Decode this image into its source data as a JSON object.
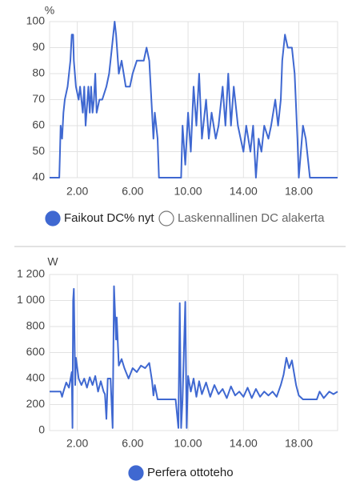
{
  "chart_data": [
    {
      "type": "line",
      "unit_label": "%",
      "xlim": [
        0,
        20.8
      ],
      "ylim": [
        40,
        100
      ],
      "xticks": [
        {
          "value": 2,
          "label": "2.00"
        },
        {
          "value": 6,
          "label": "6.00"
        },
        {
          "value": 10,
          "label": "10.00"
        },
        {
          "value": 14,
          "label": "14.00"
        },
        {
          "value": 18,
          "label": "18.00"
        }
      ],
      "yticks": [
        40,
        50,
        60,
        70,
        80,
        90,
        100
      ],
      "grid": true,
      "x": [
        0,
        0.7,
        0.75,
        0.8,
        0.9,
        1.0,
        1.1,
        1.3,
        1.5,
        1.6,
        1.7,
        1.75,
        1.9,
        2.1,
        2.2,
        2.4,
        2.5,
        2.6,
        2.8,
        2.9,
        3.0,
        3.1,
        3.2,
        3.3,
        3.4,
        3.6,
        3.8,
        4.1,
        4.3,
        4.5,
        4.7,
        4.8,
        5.0,
        5.2,
        5.5,
        5.8,
        6.0,
        6.3,
        6.8,
        7.0,
        7.2,
        7.4,
        7.5,
        7.6,
        7.8,
        7.9,
        9.5,
        9.6,
        9.8,
        10.0,
        10.2,
        10.4,
        10.6,
        10.8,
        11.0,
        11.3,
        11.5,
        11.7,
        12.0,
        12.2,
        12.5,
        12.7,
        12.9,
        13.1,
        13.3,
        13.6,
        13.8,
        14.0,
        14.2,
        14.5,
        14.7,
        14.9,
        15.1,
        15.3,
        15.5,
        15.8,
        16.0,
        16.3,
        16.5,
        16.7,
        16.8,
        17.0,
        17.2,
        17.5,
        17.7,
        17.9,
        18.0,
        18.3,
        18.5,
        18.8,
        20.8
      ],
      "series": [
        {
          "name": "Faikout DC% nyt",
          "color": "#3f68d1",
          "values": [
            40,
            40,
            50,
            60,
            55,
            65,
            70,
            75,
            85,
            95,
            95,
            85,
            75,
            70,
            75,
            65,
            75,
            60,
            75,
            65,
            75,
            65,
            70,
            80,
            65,
            70,
            70,
            75,
            80,
            90,
            100,
            95,
            80,
            85,
            75,
            75,
            80,
            85,
            85,
            90,
            85,
            65,
            55,
            65,
            55,
            40,
            40,
            60,
            45,
            65,
            50,
            75,
            60,
            80,
            55,
            70,
            55,
            65,
            55,
            60,
            75,
            60,
            80,
            60,
            75,
            60,
            55,
            50,
            60,
            50,
            60,
            40,
            55,
            50,
            60,
            55,
            60,
            70,
            60,
            70,
            85,
            95,
            90,
            90,
            80,
            55,
            40,
            60,
            55,
            40,
            40
          ]
        },
        {
          "name": "Laskennallinen DC alakerta",
          "color": "#757575",
          "hidden": true
        }
      ]
    },
    {
      "type": "line",
      "unit_label": "W",
      "xlim": [
        0,
        20.8
      ],
      "ylim": [
        0,
        1200
      ],
      "xticks": [
        {
          "value": 2,
          "label": "2.00"
        },
        {
          "value": 6,
          "label": "6.00"
        },
        {
          "value": 10,
          "label": "10.00"
        },
        {
          "value": 14,
          "label": "14.00"
        },
        {
          "value": 18,
          "label": "18.00"
        }
      ],
      "yticks": [
        0,
        200,
        400,
        600,
        800,
        {
          "value": 1000,
          "label": "1 000"
        },
        {
          "value": 1200,
          "label": "1 200"
        }
      ],
      "grid": true,
      "x": [
        0,
        0.8,
        0.9,
        1.0,
        1.2,
        1.4,
        1.6,
        1.65,
        1.7,
        1.75,
        1.85,
        1.9,
        2.1,
        2.3,
        2.5,
        2.7,
        2.9,
        3.1,
        3.3,
        3.5,
        3.7,
        3.9,
        4.0,
        4.1,
        4.2,
        4.4,
        4.55,
        4.65,
        4.8,
        4.85,
        5.0,
        5.2,
        5.4,
        5.7,
        6.0,
        6.3,
        6.6,
        6.9,
        7.2,
        7.4,
        7.5,
        7.6,
        7.8,
        9.1,
        9.3,
        9.4,
        9.5,
        9.6,
        9.8,
        9.9,
        10.0,
        10.2,
        10.4,
        10.6,
        10.8,
        11.0,
        11.3,
        11.6,
        11.9,
        12.2,
        12.5,
        12.8,
        13.1,
        13.4,
        13.7,
        14.0,
        14.3,
        14.6,
        14.9,
        15.2,
        15.5,
        15.8,
        16.1,
        16.4,
        16.7,
        16.9,
        17.1,
        17.3,
        17.5,
        17.8,
        18.0,
        18.3,
        19.3,
        19.5,
        19.8,
        20.2,
        20.5,
        20.8
      ],
      "series": [
        {
          "name": "Perfera ottoteho",
          "color": "#3f68d1",
          "values": [
            300,
            300,
            260,
            300,
            370,
            330,
            450,
            20,
            1000,
            1090,
            350,
            560,
            400,
            350,
            400,
            330,
            410,
            350,
            420,
            300,
            380,
            300,
            280,
            90,
            400,
            400,
            20,
            1110,
            700,
            870,
            500,
            550,
            480,
            400,
            480,
            450,
            500,
            480,
            520,
            380,
            270,
            350,
            240,
            240,
            20,
            980,
            20,
            240,
            990,
            20,
            420,
            300,
            400,
            260,
            380,
            280,
            370,
            260,
            350,
            280,
            320,
            250,
            340,
            270,
            300,
            260,
            330,
            250,
            320,
            260,
            300,
            270,
            300,
            260,
            350,
            430,
            560,
            480,
            540,
            350,
            270,
            240,
            240,
            300,
            250,
            300,
            280,
            300
          ]
        }
      ]
    }
  ]
}
